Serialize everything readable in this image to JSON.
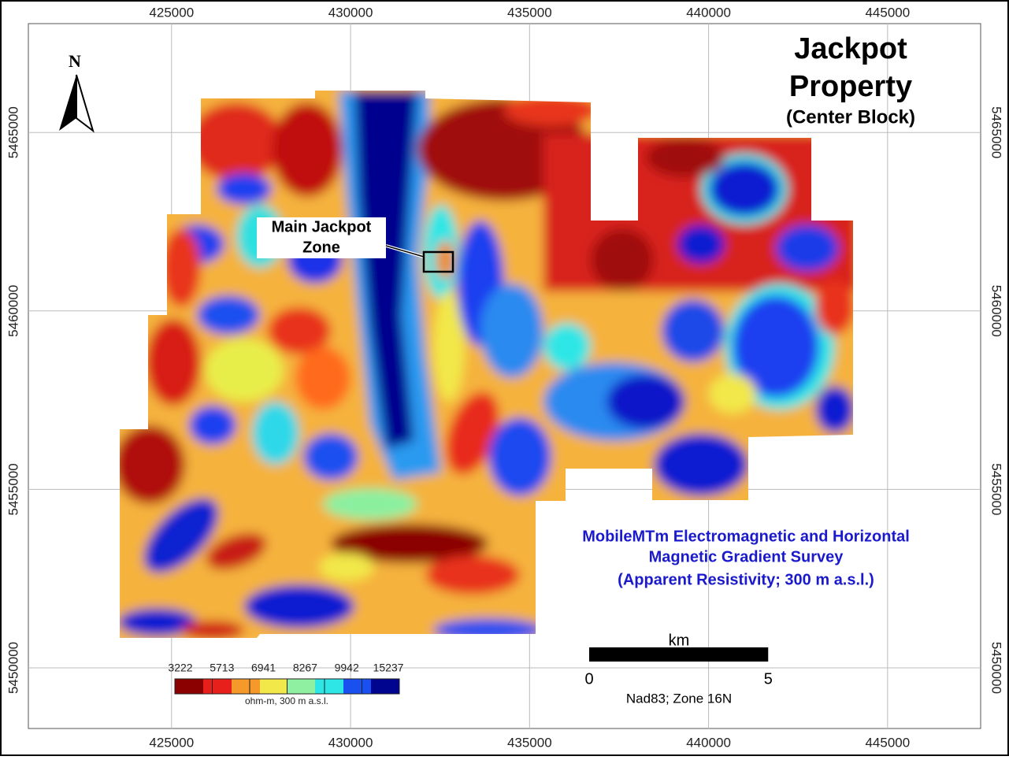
{
  "map": {
    "title": [
      "Jackpot",
      "Property"
    ],
    "subtitle": "(Center Block)",
    "north": "N",
    "xlim": [
      421000,
      447600
    ],
    "ylim": [
      5448300,
      5468050
    ],
    "xticks": [
      425000,
      430000,
      435000,
      440000,
      445000
    ],
    "yticks": [
      5450000,
      5455000,
      5460000,
      5465000
    ],
    "grid": true,
    "callout": [
      "Main Jackpot",
      "Zone"
    ],
    "survey_caption": [
      "MobileMTm Electromagnetic and Horizontal",
      "Magnetic Gradient Survey",
      "(Apparent Resistivity; 300 m a.s.l.)"
    ],
    "legend": {
      "labels": [
        3222,
        5713,
        6941,
        8267,
        9942,
        15237
      ],
      "unit": "ohm-m, 300 m a.s.l."
    },
    "scale_bar": {
      "unit": "km",
      "ticks": [
        0,
        5
      ]
    },
    "projection": "Nad83; Zone 16N"
  }
}
